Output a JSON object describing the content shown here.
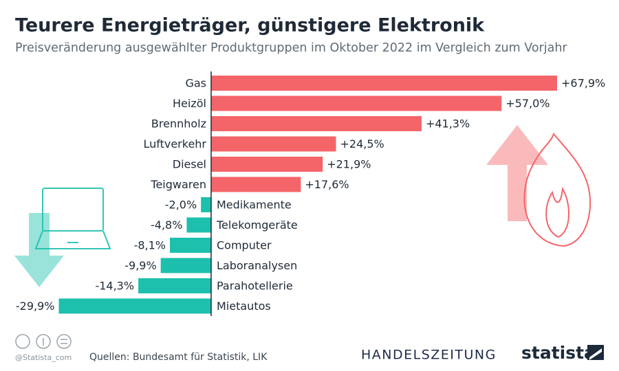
{
  "chart_data": {
    "type": "bar",
    "orientation": "horizontal",
    "title": "Teurere Energieträger, günstigere Elektronik",
    "subtitle": "Preisveränderung ausgewählter Produktgruppen im Oktober 2022 im Vergleich zum Vorjahr",
    "categories": [
      "Gas",
      "Heizöl",
      "Brennholz",
      "Luftverkehr",
      "Diesel",
      "Teigwaren",
      "Medikamente",
      "Telekomgeräte",
      "Computer",
      "Laboranalysen",
      "Parahotellerie",
      "Mietautos"
    ],
    "values": [
      67.9,
      57.0,
      41.3,
      24.5,
      21.9,
      17.6,
      -2.0,
      -4.8,
      -8.1,
      -9.9,
      -14.3,
      -29.9
    ],
    "value_labels": [
      "+67,9%",
      "+57,0%",
      "+41,3%",
      "+24,5%",
      "+21,9%",
      "+17,6%",
      "-2,0%",
      "-4,8%",
      "-8,1%",
      "-9,9%",
      "-14,3%",
      "-29,9%"
    ],
    "color": "#f4656a",
    "negative_color": "#1cc0ad",
    "source": "Quellen: Bundesamt für Statistik, LIK",
    "credit": "@Statista_com",
    "publisher": "HANDELSZEITUNG",
    "brand": "statista"
  }
}
